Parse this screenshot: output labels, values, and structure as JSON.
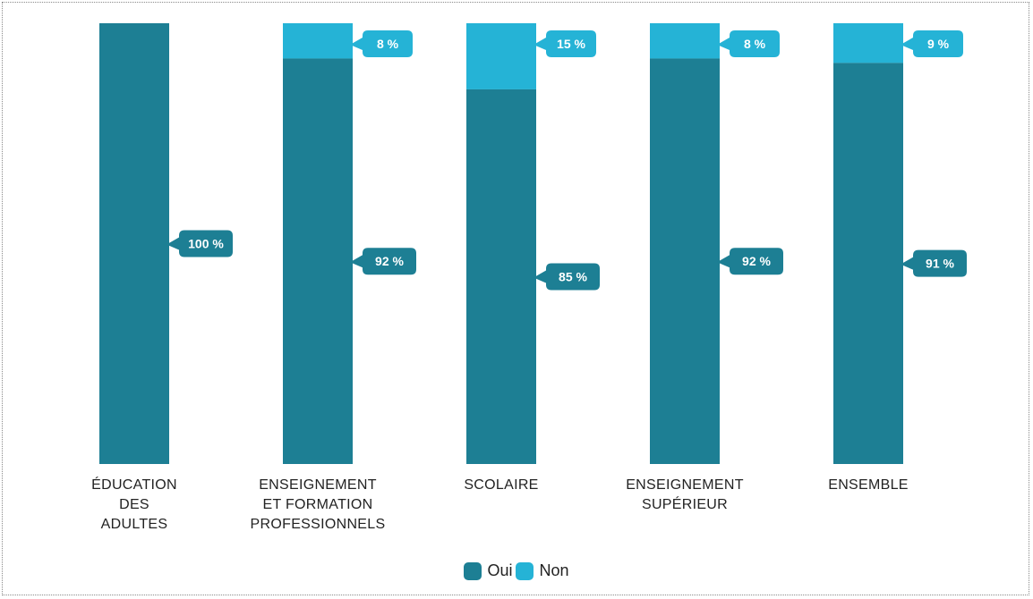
{
  "chart_data": {
    "type": "bar",
    "stacked": true,
    "categories": [
      [
        "ÉDUCATION",
        "DES",
        "ADULTES"
      ],
      [
        "ENSEIGNEMENT",
        "ET FORMATION",
        "PROFESSIONNELS"
      ],
      [
        "SCOLAIRE"
      ],
      [
        "ENSEIGNEMENT",
        "SUPÉRIEUR"
      ],
      [
        "ENSEMBLE"
      ]
    ],
    "series": [
      {
        "name": "Oui",
        "color": "#1d7f94",
        "values": [
          100,
          92,
          85,
          92,
          91
        ],
        "labels": [
          "100 %",
          "92 %",
          "85 %",
          "92 %",
          "91 %"
        ]
      },
      {
        "name": "Non",
        "color": "#25b3d6",
        "values": [
          0,
          8,
          15,
          8,
          9
        ],
        "labels": [
          "",
          "8 %",
          "15 %",
          "8 %",
          "9 %"
        ]
      }
    ],
    "ylim": [
      0,
      100
    ],
    "legend_position": "bottom-center",
    "grid": false
  }
}
